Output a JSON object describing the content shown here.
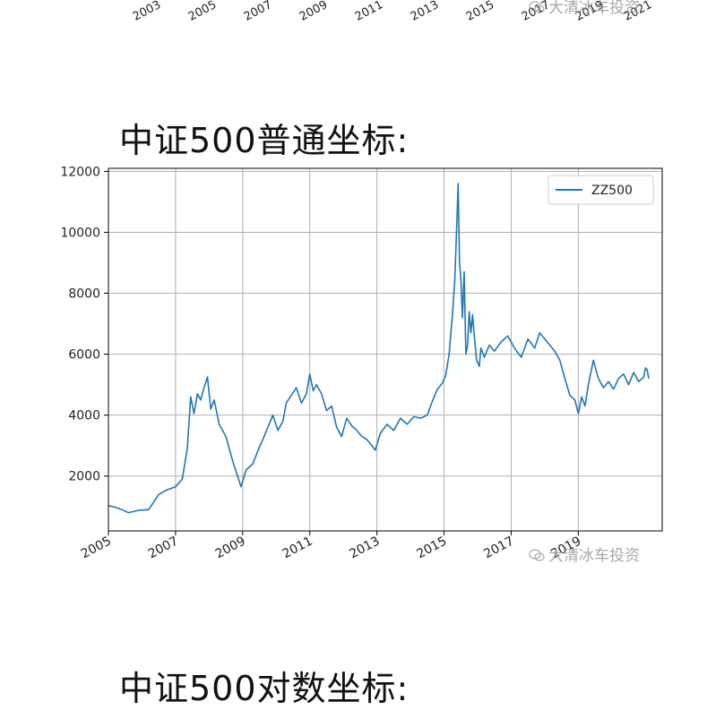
{
  "top_strip": {
    "ticks": [
      "2003",
      "2005",
      "2007",
      "2009",
      "2011",
      "2013",
      "2015",
      "2017",
      "2019",
      "2021"
    ],
    "watermark": "大清冰车投资"
  },
  "headings": {
    "normal": "中证500普通坐标:",
    "log": "中证500对数坐标:"
  },
  "watermark": "大清冰车投资",
  "colors": {
    "line": "#1f77b4",
    "grid": "#b0b0b0",
    "axis": "#000000"
  },
  "chart_data": {
    "type": "line",
    "title": "",
    "xlabel": "",
    "ylabel": "",
    "xlim": [
      2005.0,
      2021.5
    ],
    "ylim": [
      200,
      12100
    ],
    "x_ticks": [
      "2005",
      "2007",
      "2009",
      "2011",
      "2013",
      "2015",
      "2017",
      "2019"
    ],
    "y_ticks": [
      2000,
      4000,
      6000,
      8000,
      10000,
      12000
    ],
    "grid": true,
    "legend": {
      "position": "top-right",
      "entries": [
        "ZZ500"
      ]
    },
    "series": [
      {
        "name": "ZZ500",
        "x": [
          2005.0,
          2005.2,
          2005.4,
          2005.6,
          2005.9,
          2006.2,
          2006.5,
          2006.75,
          2007.0,
          2007.2,
          2007.35,
          2007.45,
          2007.55,
          2007.65,
          2007.75,
          2007.85,
          2007.95,
          2008.05,
          2008.15,
          2008.3,
          2008.5,
          2008.7,
          2008.85,
          2008.95,
          2009.1,
          2009.3,
          2009.5,
          2009.6,
          2009.75,
          2009.9,
          2010.05,
          2010.2,
          2010.3,
          2010.45,
          2010.6,
          2010.75,
          2010.9,
          2011.0,
          2011.1,
          2011.2,
          2011.35,
          2011.5,
          2011.65,
          2011.8,
          2011.95,
          2012.1,
          2012.25,
          2012.4,
          2012.55,
          2012.7,
          2012.85,
          2012.95,
          2013.1,
          2013.3,
          2013.5,
          2013.7,
          2013.9,
          2014.1,
          2014.3,
          2014.5,
          2014.65,
          2014.8,
          2014.95,
          2015.05,
          2015.15,
          2015.25,
          2015.32,
          2015.38,
          2015.42,
          2015.46,
          2015.5,
          2015.55,
          2015.6,
          2015.65,
          2015.7,
          2015.75,
          2015.8,
          2015.85,
          2015.9,
          2015.97,
          2016.05,
          2016.1,
          2016.2,
          2016.35,
          2016.5,
          2016.7,
          2016.9,
          2017.1,
          2017.3,
          2017.5,
          2017.7,
          2017.85,
          2018.0,
          2018.15,
          2018.3,
          2018.45,
          2018.6,
          2018.75,
          2018.9,
          2019.0,
          2019.1,
          2019.2,
          2019.3,
          2019.45,
          2019.6,
          2019.75,
          2019.9,
          2020.05,
          2020.2,
          2020.35,
          2020.5,
          2020.65,
          2020.8,
          2020.95,
          2021.0,
          2021.05,
          2021.1
        ],
        "values": [
          1030,
          980,
          900,
          800,
          880,
          900,
          1400,
          1550,
          1650,
          1900,
          2900,
          4600,
          4050,
          4700,
          4500,
          4900,
          5250,
          4200,
          4500,
          3700,
          3300,
          2500,
          2000,
          1650,
          2200,
          2400,
          2950,
          3200,
          3600,
          4000,
          3500,
          3800,
          4400,
          4650,
          4900,
          4400,
          4700,
          5350,
          4800,
          5000,
          4700,
          4150,
          4300,
          3600,
          3300,
          3900,
          3650,
          3500,
          3300,
          3200,
          3000,
          2850,
          3400,
          3700,
          3500,
          3900,
          3700,
          3950,
          3900,
          4000,
          4450,
          4850,
          5050,
          5300,
          6000,
          7300,
          8400,
          10300,
          11600,
          9000,
          8500,
          7200,
          8700,
          6000,
          6300,
          7400,
          6700,
          7300,
          6600,
          5800,
          5600,
          6200,
          5900,
          6300,
          6100,
          6400,
          6600,
          6200,
          5900,
          6500,
          6200,
          6700,
          6500,
          6300,
          6100,
          5800,
          5200,
          4650,
          4500,
          4050,
          4600,
          4300,
          5000,
          5800,
          5200,
          4900,
          5100,
          4850,
          5200,
          5350,
          5000,
          5400,
          5100,
          5250,
          5550,
          5500,
          5200
        ]
      }
    ]
  }
}
